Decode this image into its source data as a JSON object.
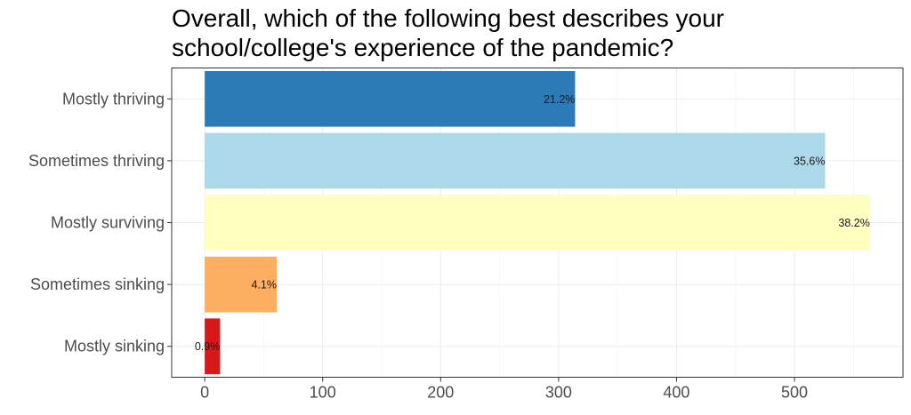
{
  "chart_data": {
    "type": "bar",
    "orientation": "horizontal",
    "title": "Overall, which of the following best describes your school/college's experience of the pandemic?",
    "xlabel": "",
    "ylabel": "",
    "categories": [
      "Mostly thriving",
      "Sometimes thriving",
      "Mostly surviving",
      "Sometimes sinking",
      "Mostly sinking"
    ],
    "values": [
      314,
      526,
      564,
      61,
      13
    ],
    "labels": [
      "21.2%",
      "35.6%",
      "38.2%",
      "4.1%",
      "0.9%"
    ],
    "colors": [
      "#2c7bb6",
      "#abd9e9",
      "#ffffbf",
      "#fdae61",
      "#d7191c"
    ],
    "xlim": [
      -28,
      592
    ],
    "xticks": [
      0,
      100,
      200,
      300,
      400,
      500
    ],
    "xtick_labels": [
      "0",
      "100",
      "200",
      "300",
      "400",
      "500"
    ],
    "grid": true,
    "legend": "none"
  }
}
